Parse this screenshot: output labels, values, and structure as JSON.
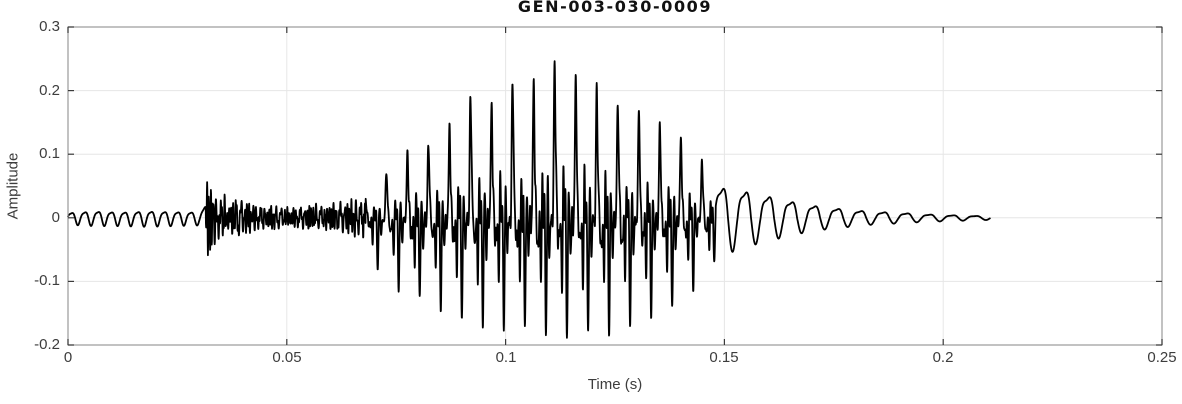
{
  "colors": {
    "line": "#000000",
    "grid": "#e6e6e6",
    "box": "#9a9a9a",
    "tick": "#3a3a3a",
    "label": "#3d3d3d",
    "title": "#111111",
    "background": "#ffffff"
  },
  "chart_data": {
    "type": "line",
    "title": "GEN-003-030-0009",
    "xlabel": "Time (s)",
    "ylabel": "Amplitude",
    "xlim": [
      0,
      0.25
    ],
    "ylim": [
      -0.2,
      0.3
    ],
    "xticks": [
      0,
      0.05,
      0.1,
      0.15,
      0.2,
      0.25
    ],
    "xtick_labels": [
      "0",
      "0.05",
      "0.1",
      "0.15",
      "0.2",
      "0.25"
    ],
    "yticks": [
      -0.2,
      -0.1,
      0,
      0.1,
      0.2,
      0.3
    ],
    "ytick_labels": [
      "-0.2",
      "-0.1",
      "0",
      "0.1",
      "0.2",
      "0.3"
    ],
    "grid": true,
    "box": true,
    "legend": "none",
    "series_name": "waveform",
    "waveform": {
      "description": "speech-like audio waveform: low ~330Hz hum 0-0.031s, sharp click burst at 0.032s (+0.072/-0.082), low noisy segment to 0.068s, voiced segment of ~208Hz pitch pulses 0.068-0.148s peaking +0.25 at t=0.111 and -0.19 near t=0.12, smoothly decaying ~190Hz tail ending at t=0.211s",
      "t_start": 0,
      "t_end": 0.2107,
      "peak_positive": 0.25,
      "peak_negative": -0.19,
      "segments": [
        {
          "type": "tone",
          "t0": 0.0,
          "t1": 0.0315,
          "f": 330,
          "f2": 660,
          "a2": 0.25
        },
        {
          "type": "noise",
          "t0": 0.0315,
          "t1": 0.068
        },
        {
          "type": "voiced",
          "t0": 0.068,
          "t1": 0.148,
          "f0": 208,
          "harmonics": [
            [
              1,
              0
            ],
            [
              0.85,
              0.4
            ],
            [
              0.7,
              -0.6
            ],
            [
              0.75,
              0.9
            ],
            [
              0.5,
              -1.2
            ],
            [
              0.45,
              0.5
            ],
            [
              0.5,
              1.8
            ],
            [
              0.35,
              -0.9
            ],
            [
              0.3,
              2.2
            ],
            [
              0.22,
              0.3
            ]
          ]
        },
        {
          "type": "tone",
          "t0": 0.148,
          "t1": 0.2107,
          "f": 190,
          "f2": 380,
          "a2": 0.3
        }
      ],
      "envelope": [
        [
          0.0,
          0.01,
          -0.01
        ],
        [
          0.006,
          0.013,
          -0.012
        ],
        [
          0.012,
          0.011,
          -0.012
        ],
        [
          0.018,
          0.013,
          -0.013
        ],
        [
          0.024,
          0.012,
          -0.012
        ],
        [
          0.03,
          0.011,
          -0.011
        ],
        [
          0.0315,
          0.025,
          -0.025
        ],
        [
          0.0319,
          0.072,
          -0.082
        ],
        [
          0.0327,
          0.058,
          -0.068
        ],
        [
          0.0335,
          0.046,
          -0.052
        ],
        [
          0.037,
          0.034,
          -0.035
        ],
        [
          0.041,
          0.03,
          -0.028
        ],
        [
          0.045,
          0.022,
          -0.022
        ],
        [
          0.05,
          0.018,
          -0.018
        ],
        [
          0.055,
          0.022,
          -0.02
        ],
        [
          0.06,
          0.025,
          -0.022
        ],
        [
          0.064,
          0.03,
          -0.026
        ],
        [
          0.068,
          0.035,
          -0.048
        ],
        [
          0.07,
          0.05,
          -0.072
        ],
        [
          0.073,
          0.075,
          -0.1
        ],
        [
          0.076,
          0.095,
          -0.115
        ],
        [
          0.08,
          0.11,
          -0.13
        ],
        [
          0.084,
          0.125,
          -0.145
        ],
        [
          0.088,
          0.145,
          -0.155
        ],
        [
          0.092,
          0.195,
          -0.16
        ],
        [
          0.095,
          0.165,
          -0.165
        ],
        [
          0.098,
          0.19,
          -0.17
        ],
        [
          0.101,
          0.22,
          -0.175
        ],
        [
          0.104,
          0.205,
          -0.178
        ],
        [
          0.107,
          0.215,
          -0.18
        ],
        [
          0.111,
          0.25,
          -0.182
        ],
        [
          0.114,
          0.215,
          -0.185
        ],
        [
          0.117,
          0.22,
          -0.188
        ],
        [
          0.12,
          0.205,
          -0.187
        ],
        [
          0.123,
          0.2,
          -0.185
        ],
        [
          0.126,
          0.183,
          -0.178
        ],
        [
          0.129,
          0.17,
          -0.17
        ],
        [
          0.132,
          0.158,
          -0.16
        ],
        [
          0.135,
          0.145,
          -0.152
        ],
        [
          0.138,
          0.138,
          -0.145
        ],
        [
          0.141,
          0.128,
          -0.13
        ],
        [
          0.144,
          0.1,
          -0.105
        ],
        [
          0.147,
          0.072,
          -0.078
        ],
        [
          0.15,
          0.065,
          -0.052
        ],
        [
          0.154,
          0.06,
          -0.044
        ],
        [
          0.158,
          0.05,
          -0.036
        ],
        [
          0.162,
          0.044,
          -0.03
        ],
        [
          0.166,
          0.034,
          -0.024
        ],
        [
          0.17,
          0.027,
          -0.019
        ],
        [
          0.175,
          0.021,
          -0.015
        ],
        [
          0.18,
          0.016,
          -0.012
        ],
        [
          0.185,
          0.013,
          -0.009
        ],
        [
          0.19,
          0.011,
          -0.008
        ],
        [
          0.195,
          0.008,
          -0.006
        ],
        [
          0.2,
          0.006,
          -0.005
        ],
        [
          0.205,
          0.005,
          -0.004
        ],
        [
          0.2107,
          0.003,
          -0.003
        ]
      ]
    }
  }
}
